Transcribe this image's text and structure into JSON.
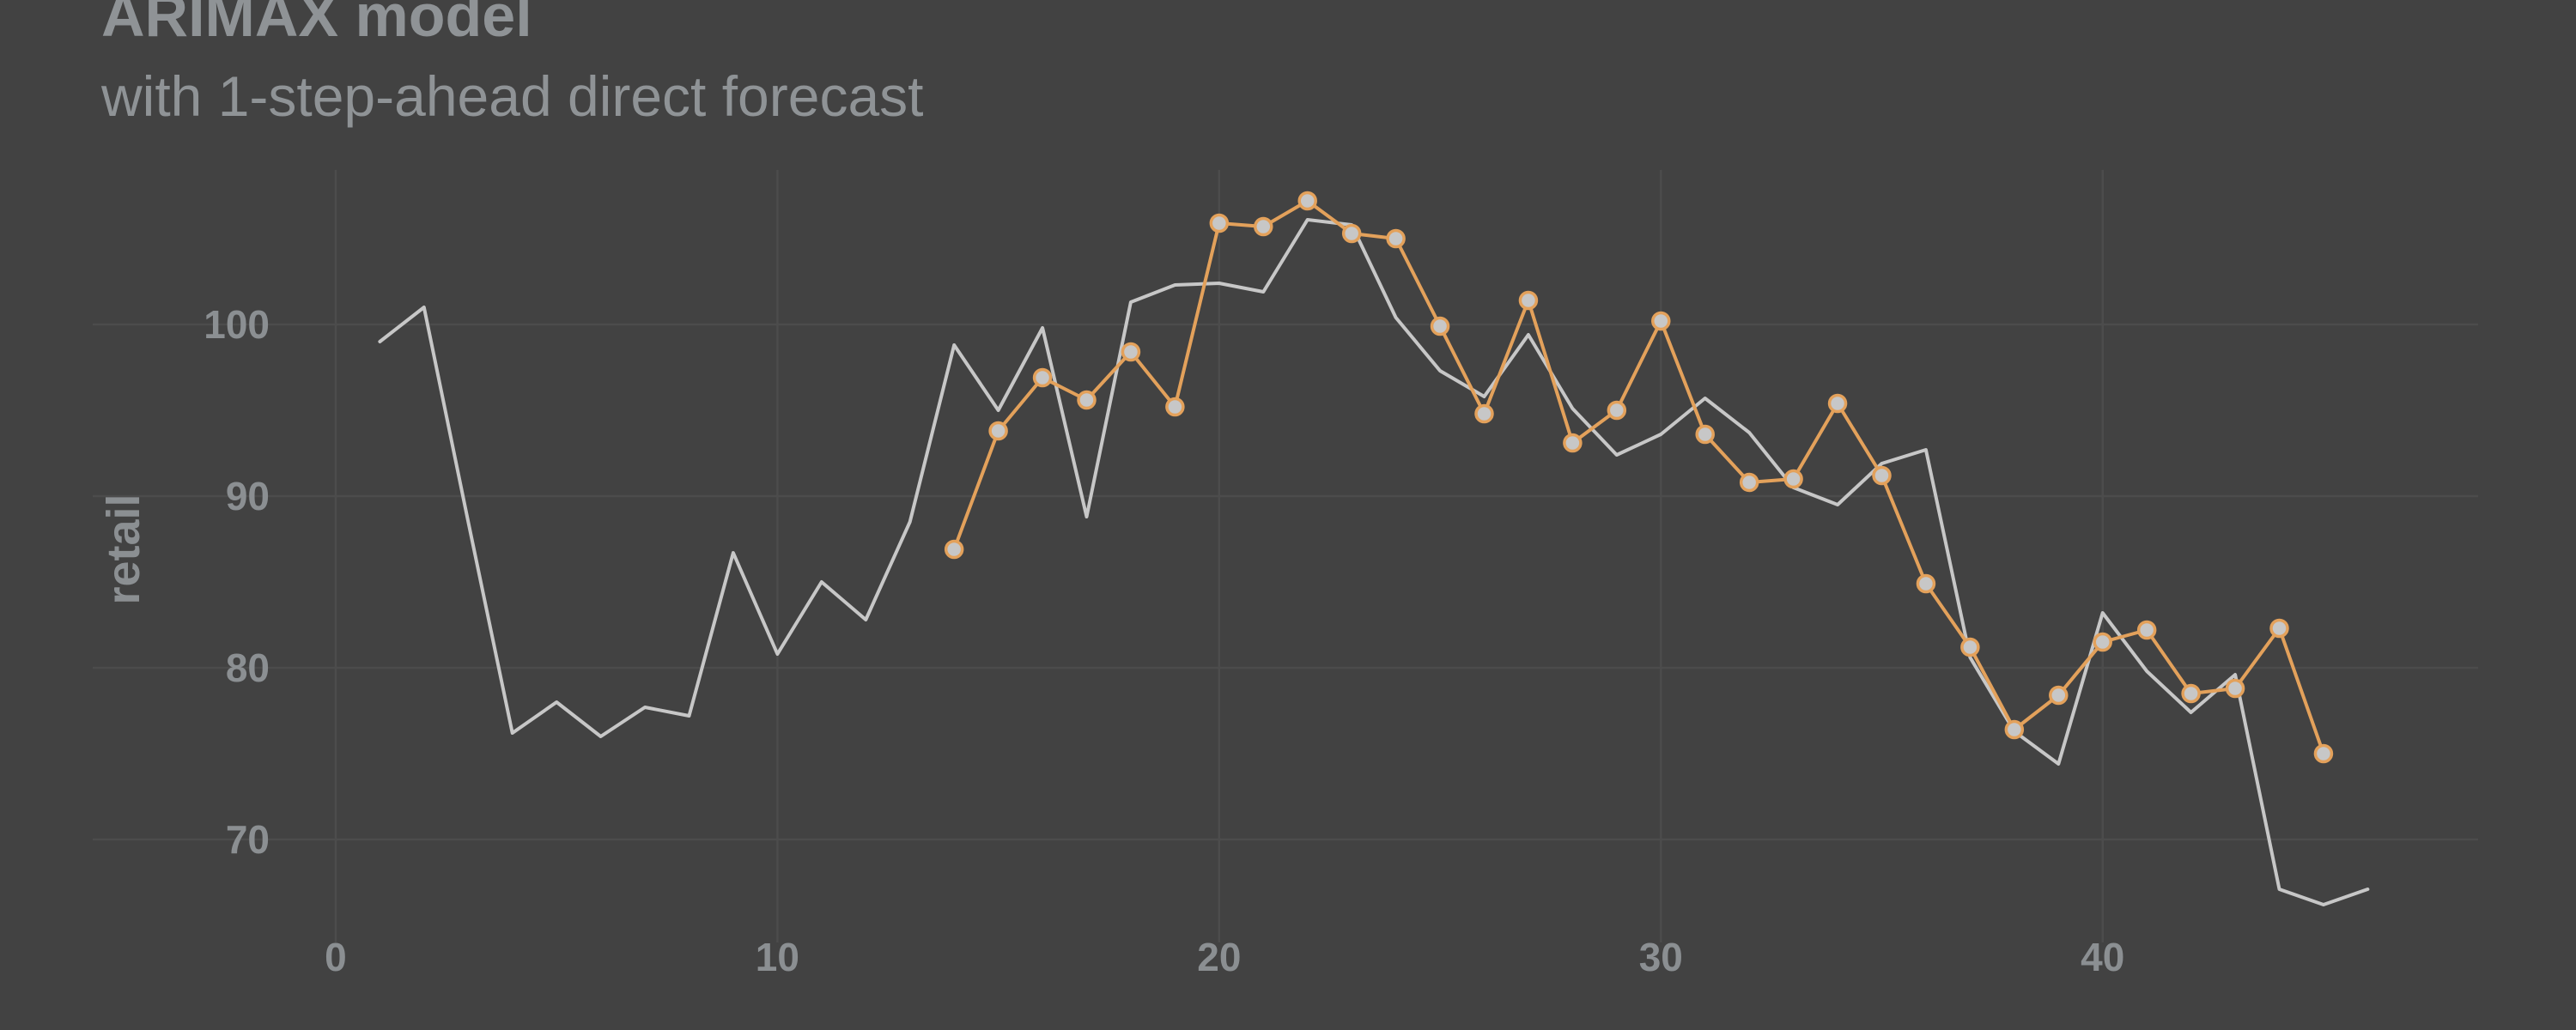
{
  "chart_data": {
    "type": "line",
    "title": "ARIMAX model",
    "subtitle": "with 1-step-ahead direct forecast",
    "xlabel": "",
    "ylabel": "retail",
    "xlim": [
      -5.5,
      48.5
    ],
    "ylim": [
      64,
      109
    ],
    "x_ticks": [
      0,
      10,
      20,
      30,
      40
    ],
    "y_ticks": [
      70,
      80,
      90,
      100
    ],
    "grid": true,
    "legend": "none",
    "colors": {
      "background": "#424242",
      "grid": "#4c4c4c",
      "actual": "#c7c7c7",
      "forecast": "#e3a15b",
      "forecast_point": "#c7c7c7",
      "text": "#8b8f92"
    },
    "series": [
      {
        "x": [
          1,
          2,
          3,
          4,
          5,
          6,
          7,
          8,
          9,
          10,
          11,
          12,
          13,
          14,
          15,
          16,
          17,
          18,
          19,
          20,
          21,
          22,
          23,
          24,
          25,
          26,
          27,
          28,
          29,
          30,
          31,
          32,
          33,
          34,
          35,
          36,
          37,
          38,
          39,
          40,
          41,
          42,
          43,
          44,
          45,
          46
        ],
        "values": [
          99.0,
          101.0,
          88.5,
          76.2,
          78.0,
          76.0,
          77.7,
          77.2,
          86.7,
          80.8,
          85.0,
          82.8,
          88.5,
          98.8,
          95.0,
          99.8,
          88.8,
          101.3,
          102.3,
          102.4,
          101.9,
          106.1,
          105.8,
          100.4,
          97.3,
          95.8,
          99.4,
          95.1,
          92.4,
          93.6,
          95.7,
          93.7,
          90.5,
          89.5,
          91.9,
          92.7,
          80.6,
          76.3,
          74.4,
          83.2,
          79.8,
          77.4,
          79.6,
          67.1,
          66.2,
          67.1
        ]
      },
      {
        "x": [
          14,
          15,
          16,
          17,
          18,
          19,
          20,
          21,
          22,
          23,
          24,
          25,
          26,
          27,
          28,
          29,
          30,
          31,
          32,
          33,
          34,
          35,
          36,
          37,
          38,
          39,
          40,
          41,
          42,
          43,
          44,
          45
        ],
        "values": [
          86.9,
          93.8,
          96.9,
          95.6,
          98.4,
          95.2,
          105.9,
          105.7,
          107.2,
          105.3,
          105.0,
          99.9,
          94.8,
          101.4,
          93.1,
          95.0,
          100.2,
          93.6,
          90.8,
          91.0,
          95.4,
          91.2,
          84.9,
          81.2,
          76.4,
          78.4,
          81.5,
          82.2,
          78.5,
          78.8,
          82.3,
          75.0
        ]
      }
    ]
  }
}
